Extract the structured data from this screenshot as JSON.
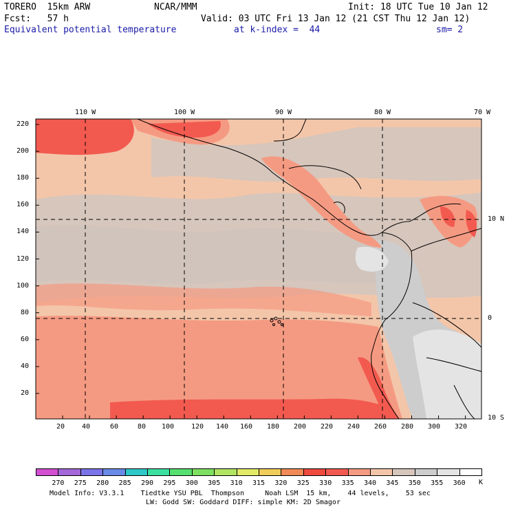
{
  "header": {
    "model": "TORERO  15km ARW",
    "org": "NCAR/MMM",
    "init": "Init: 18 UTC Tue 10 Jan 12",
    "fcst": "Fcst:   57 h",
    "valid": "Valid: 03 UTC Fri 13 Jan 12 (21 CST Thu 12 Jan 12)",
    "field": "Equivalent potential temperature",
    "level": "at k-index =  44",
    "smoothing": "sm= 2"
  },
  "map": {
    "lon_labels": [
      "110 W",
      "100 W",
      "90 W",
      "80 W",
      "70 W"
    ],
    "lat_labels": [
      "10 N",
      "0",
      "10 S"
    ],
    "y_ticks": [
      "220",
      "200",
      "180",
      "160",
      "140",
      "120",
      "100",
      "80",
      "60",
      "40",
      "20"
    ],
    "x_ticks": [
      "20",
      "40",
      "60",
      "80",
      "100",
      "120",
      "140",
      "160",
      "180",
      "200",
      "220",
      "240",
      "260",
      "280",
      "300",
      "320"
    ]
  },
  "colorbar": {
    "labels": [
      "270",
      "275",
      "280",
      "285",
      "290",
      "295",
      "300",
      "305",
      "310",
      "315",
      "320",
      "325",
      "330",
      "335",
      "340",
      "345",
      "350",
      "355",
      "360"
    ],
    "unit": "K",
    "colors": [
      "#d24fd2",
      "#a468d8",
      "#7b74e8",
      "#6a8ae8",
      "#2fc8c8",
      "#3be0a0",
      "#56e070",
      "#7ee060",
      "#b2e462",
      "#e2ea66",
      "#f0cc5a",
      "#f08a56",
      "#ee4a3e",
      "#f25a50",
      "#f59a82",
      "#f3c6aa",
      "#d6c6bc",
      "#cdcdcd",
      "#e4e4e4",
      "#ffffff"
    ]
  },
  "footer": {
    "line1": "Model Info: V3.3.1    Tiedtke YSU PBL  Thompson     Noah LSM  15 km,    44 levels,    53 sec",
    "line2": "LW: Godd SW: Goddard DIFF: simple KM: 2D Smagor"
  }
}
